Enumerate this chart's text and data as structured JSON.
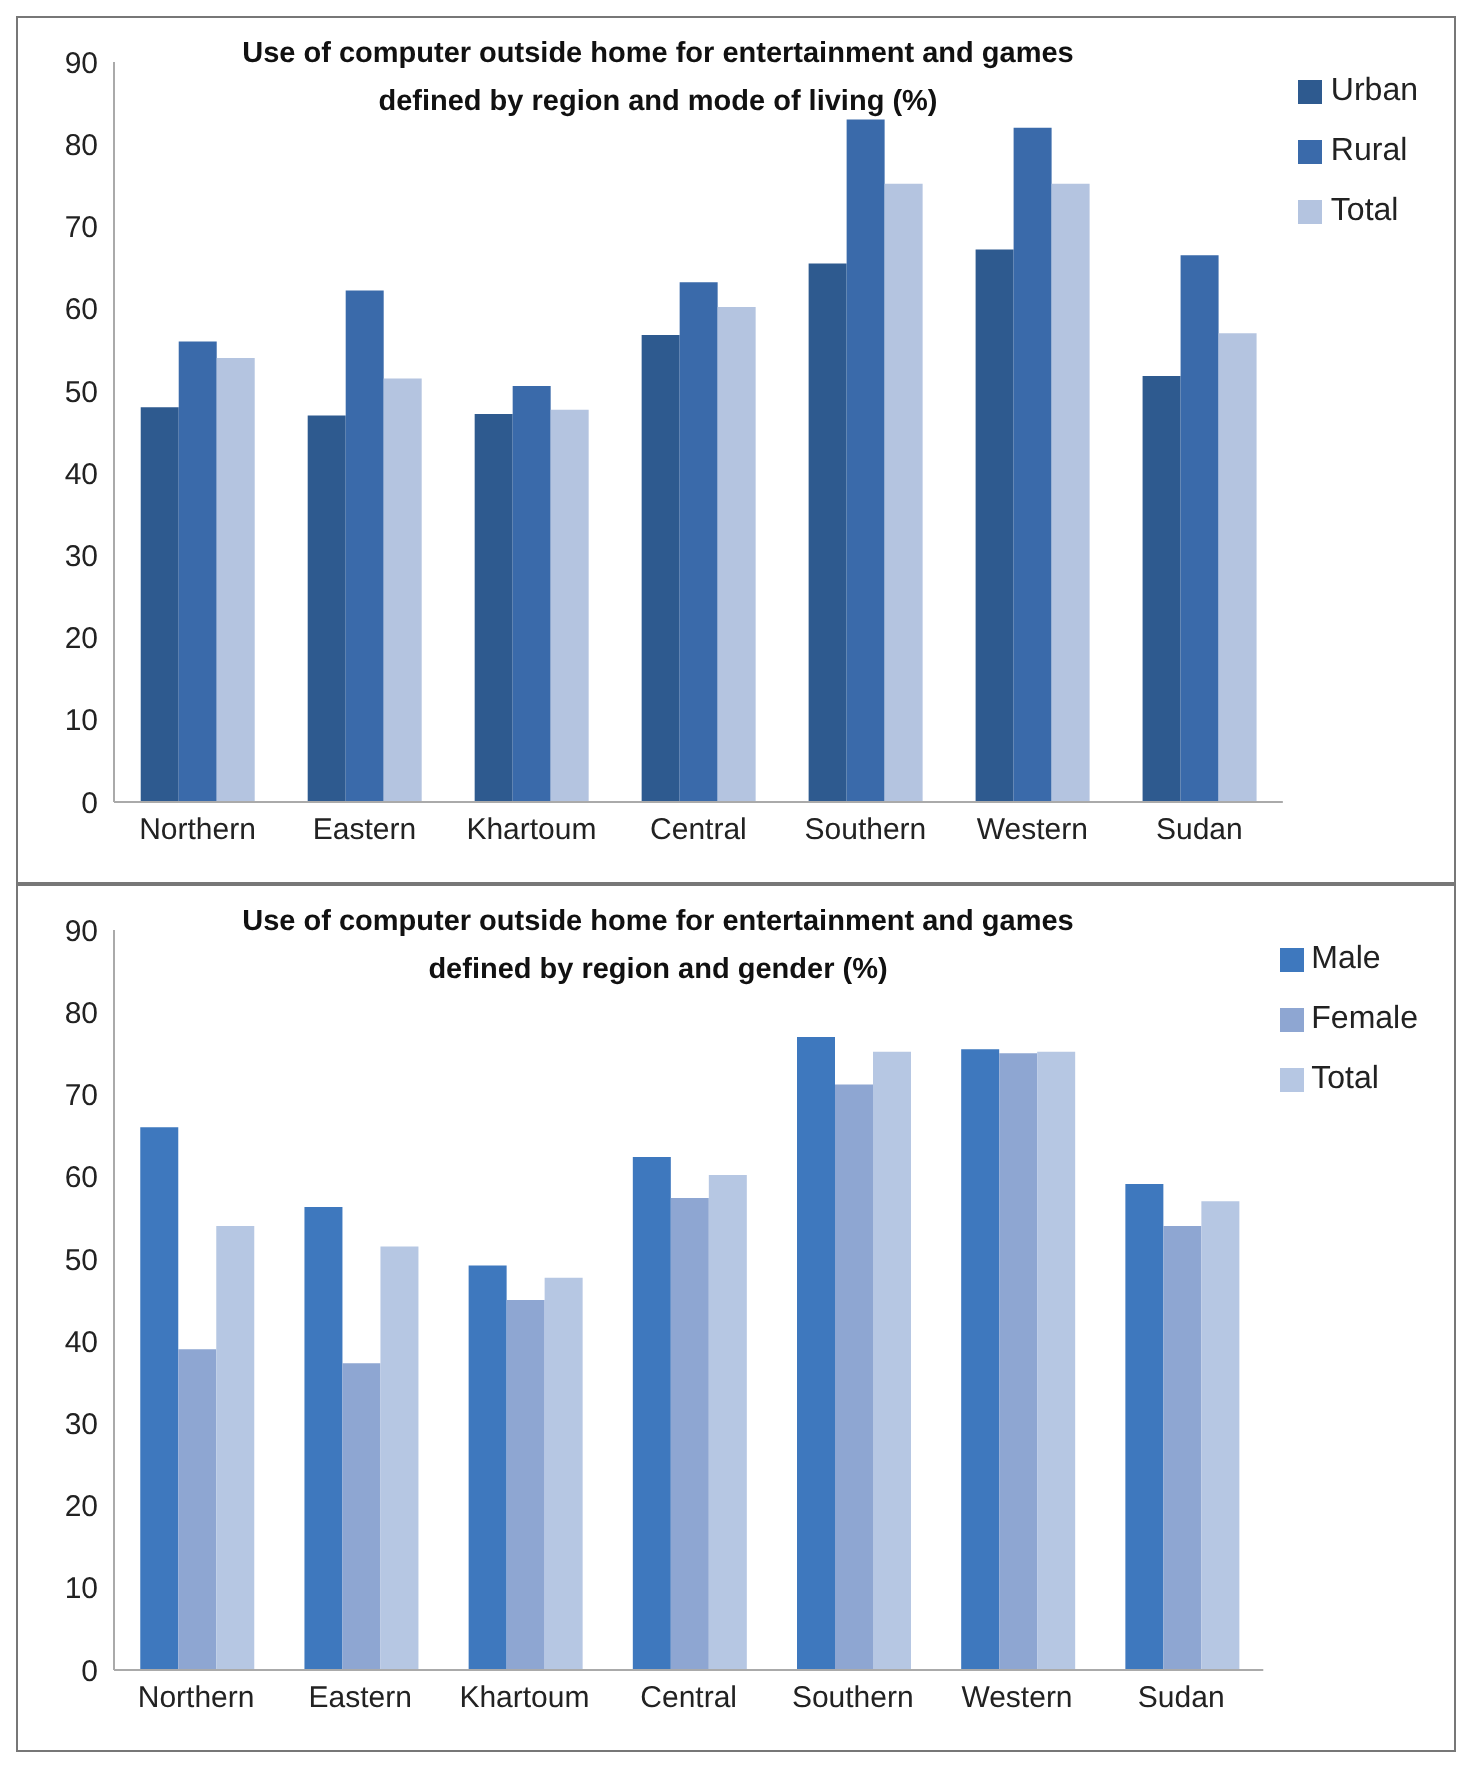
{
  "chart_data": [
    {
      "type": "bar",
      "title": "Use of computer outside home for entertainment and games\ndefined by region and mode of living (%)",
      "categories": [
        "Northern",
        "Eastern",
        "Khartoum",
        "Central",
        "Southern",
        "Western",
        "Sudan"
      ],
      "series": [
        {
          "name": "Urban",
          "color": "#2e5a8f",
          "values": [
            48,
            47,
            47.2,
            56.8,
            65.5,
            67.2,
            51.8
          ]
        },
        {
          "name": "Rural",
          "color": "#3a6aaa",
          "values": [
            56,
            62.2,
            50.6,
            63.2,
            83,
            82,
            66.5
          ]
        },
        {
          "name": "Total",
          "color": "#b4c4e0",
          "values": [
            54,
            51.5,
            47.7,
            60.2,
            75.2,
            75.2,
            57
          ]
        }
      ],
      "ylim": [
        0,
        90
      ],
      "yticks": [
        0,
        10,
        20,
        30,
        40,
        50,
        60,
        70,
        80,
        90
      ],
      "legend": "top right"
    },
    {
      "type": "bar",
      "title": "Use of computer outside  home for entertainment and games\ndefined by region and gender (%)",
      "categories": [
        "Northern",
        "Eastern",
        "Khartoum",
        "Central",
        "Southern",
        "Western",
        "Sudan"
      ],
      "series": [
        {
          "name": "Male",
          "color": "#3e78be",
          "values": [
            66,
            56.3,
            49.2,
            62.4,
            77,
            75.5,
            59.1
          ]
        },
        {
          "name": "Female",
          "color": "#8ea6d2",
          "values": [
            39,
            37.3,
            45,
            57.4,
            71.2,
            75,
            54
          ]
        },
        {
          "name": "Total",
          "color": "#b6c7e3",
          "values": [
            54,
            51.5,
            47.7,
            60.2,
            75.2,
            75.2,
            57
          ]
        }
      ],
      "ylim": [
        0,
        90
      ],
      "yticks": [
        0,
        10,
        20,
        30,
        40,
        50,
        60,
        70,
        80,
        90
      ],
      "legend": "top right"
    }
  ]
}
